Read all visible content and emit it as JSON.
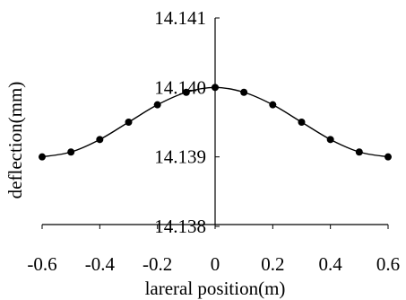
{
  "chart_data": {
    "type": "line",
    "title": "",
    "xlabel": "lareral position(m)",
    "ylabel": "deflection(mm)",
    "xlim": [
      -0.6,
      0.6
    ],
    "ylim": [
      14.138,
      14.141
    ],
    "x_ticks": [
      "-0.6",
      "-0.4",
      "-0.2",
      "0",
      "0.2",
      "0.4",
      "0.6"
    ],
    "y_ticks": [
      "14.138",
      "14.139",
      "14.140",
      "14.141"
    ],
    "grid": false,
    "legend": "none",
    "series": [
      {
        "x": [
          -0.6,
          -0.5,
          -0.4,
          -0.3,
          -0.2,
          -0.1,
          0.0,
          0.1,
          0.2,
          0.3,
          0.4,
          0.5,
          0.6
        ],
        "y": [
          14.139,
          14.13907,
          14.13925,
          14.1395,
          14.13975,
          14.13993,
          14.14,
          14.13993,
          14.13975,
          14.1395,
          14.13925,
          14.13907,
          14.139
        ],
        "color": "#000000",
        "marker": "circle"
      }
    ]
  }
}
